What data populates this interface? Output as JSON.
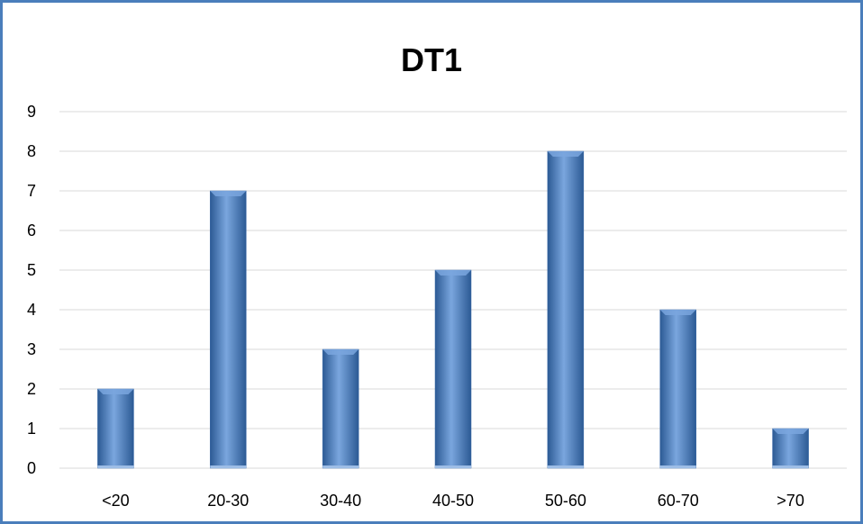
{
  "chart_data": {
    "type": "bar",
    "title": "DT1",
    "xlabel": "",
    "ylabel": "",
    "categories": [
      "<20",
      "20-30",
      "30-40",
      "40-50",
      "50-60",
      "60-70",
      ">70"
    ],
    "values": [
      2,
      7,
      3,
      5,
      8,
      4,
      1
    ],
    "ylim": [
      0,
      9
    ],
    "yticks": [
      "0",
      "1",
      "2",
      "3",
      "4",
      "5",
      "6",
      "7",
      "8",
      "9"
    ],
    "grid": true,
    "legend": "none",
    "bar_color": "#4f81bd",
    "bar_color_light": "#7aa6de",
    "bar_color_dark": "#2c5a94",
    "grid_color": "#d9d9d9",
    "border_color": "#4a7ebb"
  }
}
